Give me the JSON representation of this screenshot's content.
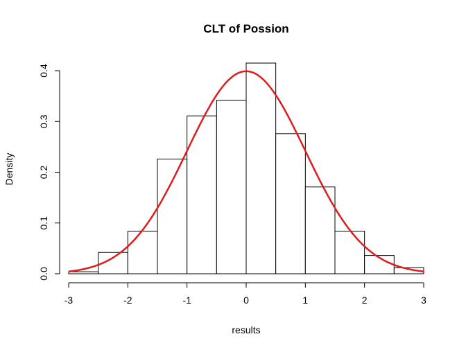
{
  "chart_data": {
    "type": "bar",
    "title": "CLT of Possion",
    "xlabel": "results",
    "ylabel": "Density",
    "xlim": [
      -3,
      3
    ],
    "ylim": [
      0,
      0.4
    ],
    "x_ticks": [
      "-3",
      "-2",
      "-1",
      "0",
      "1",
      "2",
      "3"
    ],
    "y_ticks": [
      "0.0",
      "0.1",
      "0.2",
      "0.3",
      "0.4"
    ],
    "bins": [
      {
        "from": -3.0,
        "to": -2.5,
        "density": 0.004
      },
      {
        "from": -2.5,
        "to": -2.0,
        "density": 0.042
      },
      {
        "from": -2.0,
        "to": -1.5,
        "density": 0.084
      },
      {
        "from": -1.5,
        "to": -1.0,
        "density": 0.226
      },
      {
        "from": -1.0,
        "to": -0.5,
        "density": 0.311
      },
      {
        "from": -0.5,
        "to": 0.0,
        "density": 0.342
      },
      {
        "from": 0.0,
        "to": 0.5,
        "density": 0.415
      },
      {
        "from": 0.5,
        "to": 1.0,
        "density": 0.276
      },
      {
        "from": 1.0,
        "to": 1.5,
        "density": 0.171
      },
      {
        "from": 1.5,
        "to": 2.0,
        "density": 0.084
      },
      {
        "from": 2.0,
        "to": 2.5,
        "density": 0.036
      },
      {
        "from": 2.5,
        "to": 3.0,
        "density": 0.012
      }
    ],
    "overlay": {
      "type": "normal-density",
      "mean": 0,
      "sd": 1,
      "color": "#dd1c1c"
    },
    "grid": false,
    "legend": "none"
  }
}
